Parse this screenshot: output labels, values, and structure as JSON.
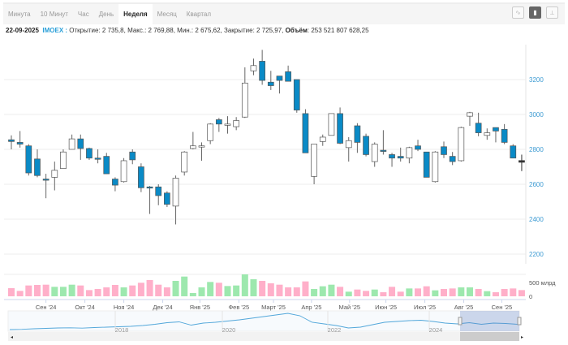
{
  "tabs": [
    "Минута",
    "10 Минут",
    "Час",
    "День",
    "Неделя",
    "Месяц",
    "Квартал"
  ],
  "active_tab": "Неделя",
  "chart_types": [
    "line-chart-icon",
    "candlestick-chart-icon",
    "ohlc-chart-icon"
  ],
  "info": {
    "date": "22-09-2025",
    "ticker": "IMOEX :",
    "open_label": "Открытие:",
    "open": "2 735,8,",
    "high_label": "Макс.:",
    "high": "2 769,88,",
    "low_label": "Мин.:",
    "low": "2 675,62,",
    "close_label": "Закрытие:",
    "close": "2 725,97,",
    "volume_label": "Объём",
    "volume": ": 253 521 807 628,25"
  },
  "colors": {
    "down": "#0a8ac6",
    "up": "#ffffff",
    "vol_up": "#9de8ae",
    "vol_down": "#ffafc9",
    "axis_label": "#3d9bd3",
    "nav_line": "#52a7da"
  },
  "chart_data": {
    "type": "candlestick",
    "yticks": [
      2200,
      2400,
      2600,
      2800,
      3000,
      3200
    ],
    "ylim": [
      2150,
      3400
    ],
    "volume_ticks": [
      {
        "v": 0,
        "label": "0"
      },
      {
        "v": 500,
        "label": "500 млрд"
      }
    ],
    "volume_max": 850,
    "months": [
      "Сен '24",
      "Окт '24",
      "Ноя '24",
      "Дек '24",
      "Янв '25",
      "Фев '25",
      "Март '25",
      "Апр '25",
      "Май '25",
      "Июн '25",
      "Июл '25",
      "Авг '25",
      "Сен '25"
    ],
    "month_index": [
      4,
      8.5,
      13,
      17.5,
      21.8,
      26.3,
      30.3,
      34.7,
      39.1,
      43.3,
      47.8,
      52.3,
      56.7
    ],
    "navigator_years": [
      "2018",
      "2020",
      "2022",
      "2024"
    ],
    "navigator_values": [
      2100,
      2130,
      2200,
      2250,
      2300,
      2320,
      2280,
      2350,
      2400,
      2450,
      2500,
      2600,
      2750,
      2950,
      3050,
      2650,
      2900,
      3000,
      3150,
      3300,
      3500,
      3700,
      3900,
      4100,
      3800,
      3000,
      2800,
      2600,
      2300,
      2400,
      2700,
      3000,
      3100,
      3200,
      3250,
      3100,
      2900,
      2800,
      2950,
      2750,
      2900,
      2850,
      2750
    ],
    "candles": [
      [
        2855,
        2880,
        2800,
        2845
      ],
      [
        2840,
        2905,
        2810,
        2830
      ],
      [
        2820,
        2830,
        2650,
        2665
      ],
      [
        2745,
        2800,
        2640,
        2650
      ],
      [
        2630,
        2660,
        2520,
        2625
      ],
      [
        2640,
        2730,
        2565,
        2680
      ],
      [
        2690,
        2800,
        2690,
        2785
      ],
      [
        2800,
        2885,
        2800,
        2860
      ],
      [
        2860,
        2885,
        2740,
        2805
      ],
      [
        2805,
        2810,
        2740,
        2750
      ],
      [
        2750,
        2800,
        2720,
        2745
      ],
      [
        2760,
        2780,
        2660,
        2660
      ],
      [
        2630,
        2640,
        2560,
        2595
      ],
      [
        2615,
        2750,
        2610,
        2735
      ],
      [
        2785,
        2800,
        2715,
        2740
      ],
      [
        2700,
        2720,
        2555,
        2580
      ],
      [
        2585,
        2590,
        2430,
        2580
      ],
      [
        2585,
        2600,
        2480,
        2535
      ],
      [
        2550,
        2560,
        2470,
        2485
      ],
      [
        2475,
        2650,
        2370,
        2635
      ],
      [
        2670,
        2790,
        2650,
        2785
      ],
      [
        2805,
        2900,
        2800,
        2820
      ],
      [
        2815,
        2840,
        2735,
        2820
      ],
      [
        2850,
        2950,
        2830,
        2945
      ],
      [
        2970,
        2980,
        2900,
        2945
      ],
      [
        2945,
        2990,
        2890,
        2945
      ],
      [
        2930,
        2985,
        2910,
        2965
      ],
      [
        2985,
        3270,
        2980,
        3180
      ],
      [
        3250,
        3320,
        3225,
        3280
      ],
      [
        3305,
        3370,
        3170,
        3195
      ],
      [
        3185,
        3250,
        3140,
        3165
      ],
      [
        3220,
        3220,
        3120,
        3195
      ],
      [
        3245,
        3280,
        3190,
        3190
      ],
      [
        3200,
        3200,
        3010,
        3025
      ],
      [
        3005,
        3030,
        2780,
        2780
      ],
      [
        2645,
        2830,
        2600,
        2830
      ],
      [
        2845,
        2885,
        2820,
        2870
      ],
      [
        2880,
        3005,
        2880,
        3005
      ],
      [
        3005,
        3040,
        2830,
        2835
      ],
      [
        2810,
        2870,
        2730,
        2850
      ],
      [
        2935,
        2950,
        2780,
        2840
      ],
      [
        2875,
        2890,
        2760,
        2770
      ],
      [
        2730,
        2840,
        2700,
        2830
      ],
      [
        2795,
        2910,
        2770,
        2790
      ],
      [
        2770,
        2780,
        2700,
        2750
      ],
      [
        2760,
        2810,
        2730,
        2750
      ],
      [
        2750,
        2815,
        2720,
        2810
      ],
      [
        2820,
        2855,
        2790,
        2800
      ],
      [
        2785,
        2785,
        2640,
        2640
      ],
      [
        2615,
        2790,
        2610,
        2785
      ],
      [
        2815,
        2845,
        2750,
        2770
      ],
      [
        2760,
        2785,
        2710,
        2730
      ],
      [
        2735,
        2930,
        2730,
        2925
      ],
      [
        2990,
        3015,
        2935,
        3010
      ],
      [
        2950,
        3010,
        2875,
        2895
      ],
      [
        2880,
        2920,
        2855,
        2895
      ],
      [
        2925,
        2925,
        2840,
        2905
      ],
      [
        2915,
        2945,
        2830,
        2840
      ],
      [
        2820,
        2830,
        2750,
        2750
      ],
      [
        2735.8,
        2769.88,
        2675.62,
        2725.97
      ]
    ],
    "volumes": [
      294,
      196,
      392,
      412,
      421,
      343,
      343,
      421,
      392,
      225,
      265,
      323,
      412,
      323,
      392,
      490,
      588,
      421,
      323,
      559,
      715,
      118,
      323,
      519,
      490,
      372,
      392,
      794,
      617,
      559,
      470,
      421,
      323,
      323,
      539,
      265,
      363,
      421,
      343,
      167,
      245,
      196,
      245,
      147,
      343,
      167,
      284,
      284,
      363,
      216,
      265,
      284,
      323,
      323,
      265,
      186,
      147,
      265,
      284,
      225
    ]
  }
}
